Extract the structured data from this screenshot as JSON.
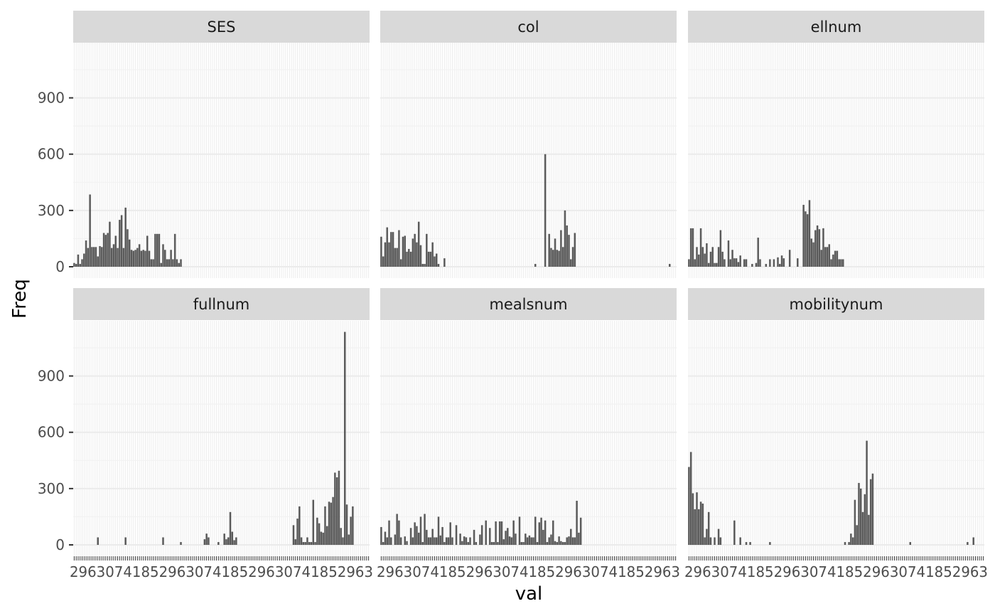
{
  "chart_data": {
    "type": "bar",
    "layout": "facet_wrap 2 rows x 3 columns, shared y axis",
    "xlabel": "val",
    "ylabel": "Freq",
    "ylim": [
      0,
      1200
    ],
    "yticks": [
      0,
      300,
      600,
      900
    ],
    "grid": true,
    "theme": "ggplot2 grey",
    "bar_color": "#595959",
    "panel_bg": "#ffffff",
    "strip_bg": "#d9d9d9",
    "x_tick_labels_overprinted": "1234567890",
    "panels": [
      {
        "name": "SES",
        "n_levels": 150,
        "values": [
          20,
          15,
          65,
          15,
          40,
          70,
          140,
          100,
          385,
          105,
          105,
          105,
          55,
          110,
          105,
          180,
          170,
          180,
          240,
          100,
          120,
          165,
          100,
          250,
          275,
          100,
          315,
          200,
          145,
          90,
          85,
          90,
          100,
          120,
          85,
          90,
          85,
          165,
          85,
          40,
          40,
          175,
          175,
          175,
          20,
          120,
          90,
          40,
          40,
          90,
          40,
          175,
          40,
          20,
          40
        ]
      },
      {
        "name": "col",
        "n_levels": 150,
        "values": [
          160,
          55,
          130,
          210,
          130,
          185,
          185,
          100,
          100,
          195,
          40,
          160,
          165,
          80,
          95,
          80,
          150,
          175,
          130,
          240,
          115,
          15,
          15,
          175,
          80,
          80,
          130,
          55,
          70,
          15,
          0,
          0,
          45,
          0,
          0,
          0,
          0,
          0,
          0,
          0,
          0,
          0,
          0,
          0,
          0,
          0,
          0,
          0,
          0,
          0,
          0,
          0,
          0,
          0,
          0,
          0,
          0,
          0,
          0,
          0,
          0,
          0,
          0,
          0,
          0,
          0,
          0,
          0,
          0,
          0,
          0,
          0,
          0,
          0,
          0,
          0,
          0,
          0,
          15,
          0,
          0,
          0,
          0,
          600,
          0,
          175,
          100,
          90,
          150,
          90,
          85,
          195,
          105,
          300,
          220,
          170,
          40,
          105,
          180,
          0,
          0,
          0,
          0,
          0,
          0,
          0,
          0,
          0,
          0,
          0,
          0,
          0,
          0,
          0,
          0,
          0,
          0,
          0,
          0,
          0,
          0,
          0,
          0,
          0,
          0,
          0,
          0,
          0,
          0,
          0,
          0,
          0,
          0,
          0,
          0,
          0,
          0,
          0,
          0,
          0,
          0,
          0,
          0,
          0,
          0,
          0,
          15
        ]
      },
      {
        "name": "ellnum",
        "n_levels": 150,
        "values": [
          40,
          205,
          205,
          40,
          105,
          65,
          205,
          105,
          70,
          125,
          20,
          80,
          105,
          20,
          20,
          105,
          195,
          80,
          40,
          0,
          140,
          40,
          90,
          45,
          45,
          25,
          60,
          0,
          40,
          40,
          0,
          0,
          15,
          0,
          20,
          155,
          40,
          0,
          0,
          15,
          0,
          40,
          0,
          40,
          0,
          50,
          15,
          60,
          45,
          0,
          0,
          90,
          0,
          0,
          0,
          45,
          0,
          0,
          330,
          295,
          280,
          355,
          150,
          130,
          195,
          220,
          200,
          90,
          205,
          105,
          105,
          120,
          40,
          65,
          85,
          85,
          40,
          40,
          40
        ]
      },
      {
        "name": "fullnum",
        "n_levels": 150,
        "values": [
          0,
          0,
          0,
          0,
          0,
          0,
          0,
          0,
          0,
          0,
          0,
          0,
          40,
          0,
          0,
          0,
          0,
          0,
          0,
          0,
          0,
          0,
          0,
          0,
          0,
          0,
          40,
          0,
          0,
          0,
          0,
          0,
          0,
          0,
          0,
          0,
          0,
          0,
          0,
          0,
          0,
          0,
          0,
          0,
          0,
          40,
          0,
          0,
          0,
          0,
          0,
          0,
          0,
          0,
          15,
          0,
          0,
          0,
          0,
          0,
          0,
          0,
          0,
          0,
          0,
          0,
          30,
          60,
          40,
          0,
          0,
          0,
          0,
          15,
          0,
          0,
          60,
          30,
          40,
          175,
          70,
          25,
          40,
          0,
          0,
          0,
          0,
          0,
          0,
          0,
          0,
          0,
          0,
          0,
          0,
          0,
          0,
          0,
          0,
          0,
          0,
          0,
          0,
          0,
          0,
          0,
          0,
          0,
          0,
          0,
          0,
          105,
          30,
          140,
          205,
          40,
          15,
          15,
          40,
          15,
          15,
          240,
          15,
          145,
          115,
          70,
          65,
          205,
          100,
          230,
          225,
          255,
          385,
          360,
          395,
          90,
          40,
          1135,
          215,
          55,
          150,
          205
        ]
      },
      {
        "name": "mealsnum",
        "n_levels": 150,
        "values": [
          95,
          15,
          70,
          40,
          130,
          40,
          0,
          55,
          165,
          130,
          40,
          0,
          45,
          20,
          0,
          90,
          40,
          120,
          100,
          65,
          150,
          15,
          165,
          80,
          40,
          40,
          85,
          40,
          40,
          150,
          50,
          95,
          15,
          40,
          40,
          120,
          40,
          0,
          105,
          0,
          60,
          20,
          45,
          40,
          15,
          40,
          0,
          80,
          15,
          0,
          55,
          105,
          0,
          130,
          0,
          90,
          15,
          15,
          125,
          15,
          125,
          125,
          30,
          75,
          90,
          45,
          40,
          130,
          60,
          0,
          150,
          15,
          15,
          60,
          40,
          50,
          40,
          40,
          150,
          15,
          120,
          145,
          80,
          130,
          15,
          40,
          55,
          130,
          20,
          15,
          45,
          20,
          15,
          15,
          40,
          45,
          85,
          40,
          40,
          235,
          65,
          145
        ]
      },
      {
        "name": "mobilitynum",
        "n_levels": 150,
        "values": [
          415,
          495,
          275,
          190,
          280,
          190,
          230,
          220,
          40,
          85,
          175,
          40,
          0,
          40,
          0,
          85,
          40,
          0,
          0,
          0,
          0,
          0,
          0,
          130,
          0,
          0,
          40,
          0,
          0,
          15,
          0,
          15,
          0,
          0,
          0,
          0,
          0,
          0,
          0,
          0,
          0,
          15,
          0,
          0,
          0,
          0,
          0,
          0,
          0,
          0,
          0,
          0,
          0,
          0,
          0,
          0,
          0,
          0,
          0,
          0,
          0,
          0,
          0,
          0,
          0,
          0,
          0,
          0,
          0,
          0,
          0,
          0,
          0,
          0,
          0,
          0,
          0,
          0,
          0,
          15,
          0,
          15,
          60,
          40,
          240,
          105,
          330,
          300,
          175,
          270,
          555,
          160,
          350,
          380,
          0,
          0,
          0,
          0,
          0,
          0,
          0,
          0,
          0,
          0,
          0,
          0,
          0,
          0,
          0,
          0,
          0,
          0,
          15,
          0,
          0,
          0,
          0,
          0,
          0,
          0,
          0,
          0,
          0,
          0,
          0,
          0,
          0,
          0,
          0,
          0,
          0,
          0,
          0,
          0,
          0,
          0,
          0,
          0,
          0,
          0,
          0,
          15,
          0,
          0,
          40
        ]
      }
    ]
  }
}
